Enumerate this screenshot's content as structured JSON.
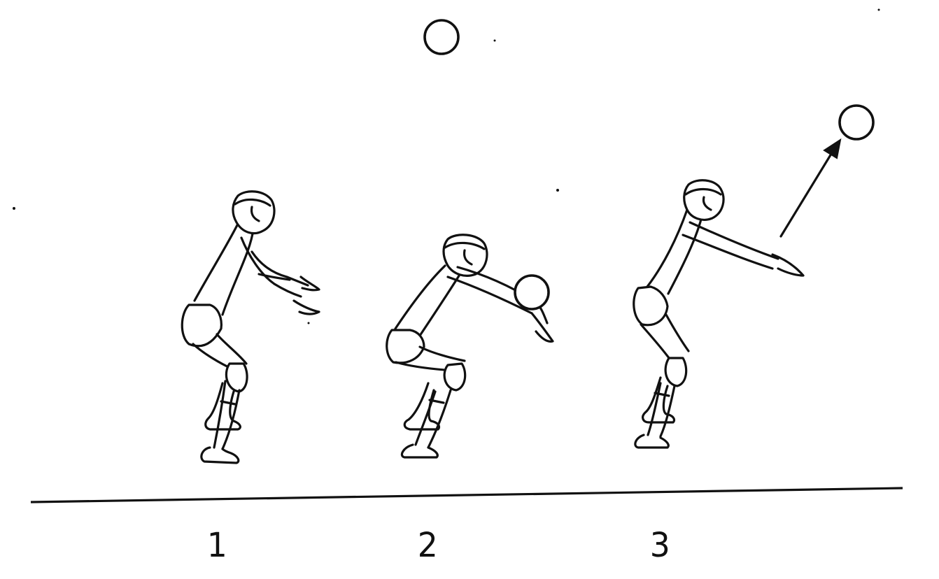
{
  "steps": [
    {
      "number": "1"
    },
    {
      "number": "2"
    },
    {
      "number": "3"
    }
  ],
  "colors": {
    "ink": "#111111",
    "background": "#ffffff"
  }
}
